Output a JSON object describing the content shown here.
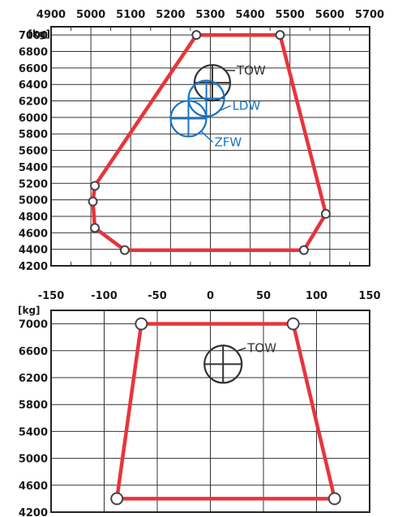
{
  "chart_data": [
    {
      "type": "line",
      "unit_label": "[kg]",
      "xlim": [
        4900,
        5700
      ],
      "ylim": [
        4200,
        7100
      ],
      "x_ticks": [
        4900,
        5000,
        5100,
        5200,
        5300,
        5400,
        5500,
        5600,
        5700
      ],
      "y_ticks": [
        7000,
        6800,
        6600,
        6400,
        6200,
        6000,
        5800,
        5600,
        5400,
        5200,
        5000,
        4800,
        4600,
        4400,
        4200
      ],
      "colors": {
        "envelope": "#e8343c",
        "tow": "#333333",
        "ldw": "#1a73c4",
        "zfw": "#1a73c4"
      },
      "series": [
        {
          "x": [
            5265,
            5475,
            5590,
            5535,
            5085,
            5010,
            5005,
            5010,
            5265
          ],
          "y": [
            7000,
            7000,
            4830,
            4390,
            4390,
            4660,
            4980,
            5170,
            7000
          ]
        }
      ],
      "points": [
        {
          "label": "TOW",
          "x": 5305,
          "y": 6420,
          "color_key": "tow"
        },
        {
          "label": "LDW",
          "x": 5290,
          "y": 6230,
          "color_key": "ldw"
        },
        {
          "label": "ZFW",
          "x": 5245,
          "y": 5985,
          "color_key": "zfw"
        }
      ]
    },
    {
      "type": "line",
      "unit_label": "[kg]",
      "xlim": [
        -150,
        150
      ],
      "ylim": [
        4200,
        7200
      ],
      "x_ticks": [
        -150,
        -100,
        -50,
        0,
        50,
        100,
        150
      ],
      "y_ticks": [
        7000,
        6600,
        6200,
        5800,
        5400,
        5000,
        4600,
        4200
      ],
      "colors": {
        "envelope": "#e8343c",
        "tow": "#333333"
      },
      "series": [
        {
          "x": [
            -65,
            78,
            117,
            -88,
            -65
          ],
          "y": [
            7000,
            7000,
            4400,
            4400,
            7000
          ]
        }
      ],
      "points": [
        {
          "label": "TOW",
          "x": 12,
          "y": 6400,
          "color_key": "tow"
        }
      ]
    }
  ]
}
